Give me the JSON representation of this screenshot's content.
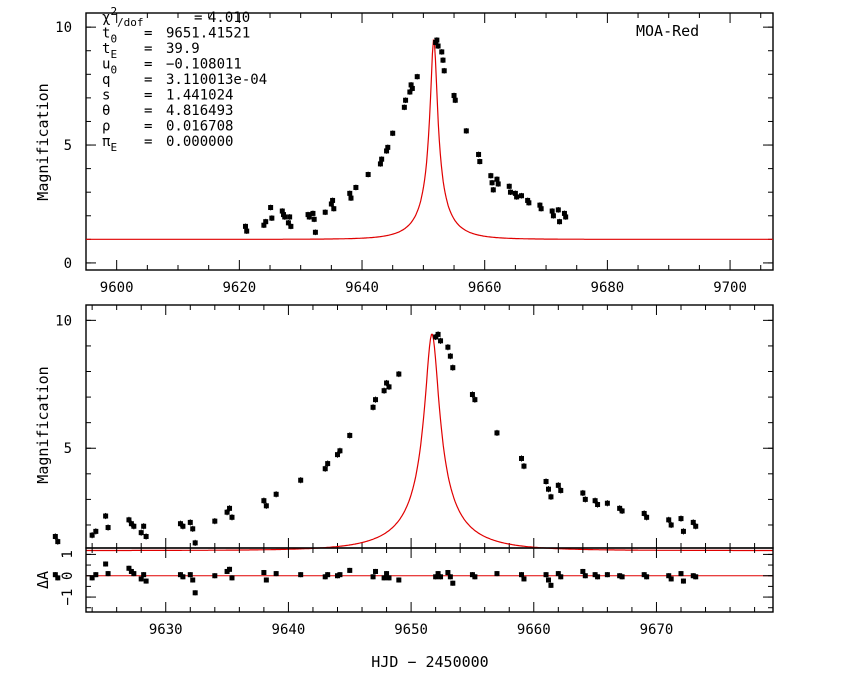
{
  "figure": {
    "instrument_label": "MOA-Red",
    "xlabel": "HJD − 2450000",
    "ylabel_mag": "Magnification",
    "ylabel_resid": "ΔA"
  },
  "params": [
    {
      "sym": "χ",
      "sup": "2",
      "sub": "/dof",
      "sep": "=",
      "val": "4.010"
    },
    {
      "sym": "t",
      "sub": "0",
      "sep": "=",
      "val": "9651.41521"
    },
    {
      "sym": "t",
      "sub": "E",
      "sep": "=",
      "val": "39.9"
    },
    {
      "sym": "u",
      "sub": "0",
      "sep": "=",
      "val": "−0.108011"
    },
    {
      "sym": "q",
      "sep": "=",
      "val": "3.110013e-04"
    },
    {
      "sym": "s",
      "sep": "=",
      "val": "1.441024"
    },
    {
      "sym": "θ",
      "sep": "=",
      "val": "4.816493"
    },
    {
      "sym": "ρ",
      "sep": "=",
      "val": "0.016708"
    },
    {
      "sym": "π",
      "sub": "E",
      "sep": "=",
      "val": "0.000000"
    }
  ],
  "chart_data": [
    {
      "type": "scatter",
      "panel": "top",
      "xlim": [
        9595,
        9707
      ],
      "ylim": [
        -0.3,
        10.6
      ],
      "xticks": [
        9600,
        9620,
        9640,
        9660,
        9680,
        9700
      ],
      "xtick_labels": [
        "9600",
        "9620",
        "9640",
        "9660",
        "9680",
        "9700"
      ],
      "yticks": [
        0,
        5,
        10
      ],
      "ytick_labels": [
        "0",
        "5",
        "10"
      ],
      "model": {
        "t0": 9651.7,
        "tE": 5.5,
        "baseline": 1.0,
        "peak": 9.45
      }
    },
    {
      "type": "scatter",
      "panel": "middle",
      "xlim": [
        9623.5,
        9679.5
      ],
      "ylim": [
        1.1,
        10.6
      ],
      "yticks": [
        5,
        10
      ],
      "ytick_labels": [
        "5",
        "10"
      ],
      "model": {
        "t0": 9651.7,
        "tE": 5.5,
        "baseline": 1.0,
        "peak": 9.45
      }
    },
    {
      "type": "scatter",
      "panel": "residual",
      "xlim": [
        9623.5,
        9679.5
      ],
      "ylim": [
        -1.7,
        1.3
      ],
      "xticks": [
        9630,
        9640,
        9650,
        9660,
        9670
      ],
      "xtick_labels": [
        "9630",
        "9640",
        "9650",
        "9660",
        "9670"
      ],
      "yticks": [
        -1,
        0,
        1
      ],
      "ytick_labels": [
        "−1",
        "0",
        "1"
      ]
    }
  ],
  "observations": [
    {
      "x": 9621.0,
      "y": 1.55,
      "r": 0.05
    },
    {
      "x": 9621.2,
      "y": 1.35,
      "r": -0.1
    },
    {
      "x": 9624.0,
      "y": 1.6,
      "r": -0.1
    },
    {
      "x": 9624.3,
      "y": 1.75,
      "r": 0.05
    },
    {
      "x": 9625.1,
      "y": 2.35,
      "r": 0.55
    },
    {
      "x": 9625.3,
      "y": 1.9,
      "r": 0.1
    },
    {
      "x": 9627.0,
      "y": 2.2,
      "r": 0.35
    },
    {
      "x": 9627.2,
      "y": 2.05,
      "r": 0.2
    },
    {
      "x": 9627.4,
      "y": 1.95,
      "r": 0.1
    },
    {
      "x": 9628.0,
      "y": 1.7,
      "r": -0.15
    },
    {
      "x": 9628.2,
      "y": 1.95,
      "r": 0.05
    },
    {
      "x": 9628.4,
      "y": 1.55,
      "r": -0.25
    },
    {
      "x": 9631.2,
      "y": 2.05,
      "r": 0.05
    },
    {
      "x": 9631.4,
      "y": 1.95,
      "r": -0.05
    },
    {
      "x": 9632.0,
      "y": 2.1,
      "r": 0.05
    },
    {
      "x": 9632.2,
      "y": 1.85,
      "r": -0.2
    },
    {
      "x": 9632.4,
      "y": 1.3,
      "r": -0.8
    },
    {
      "x": 9634.0,
      "y": 2.15,
      "r": 0.0
    },
    {
      "x": 9635.0,
      "y": 2.5,
      "r": 0.2
    },
    {
      "x": 9635.2,
      "y": 2.65,
      "r": 0.3
    },
    {
      "x": 9635.4,
      "y": 2.3,
      "r": -0.1
    },
    {
      "x": 9638.0,
      "y": 2.95,
      "r": 0.15
    },
    {
      "x": 9638.2,
      "y": 2.75,
      "r": -0.2
    },
    {
      "x": 9639.0,
      "y": 3.2,
      "r": 0.1
    },
    {
      "x": 9641.0,
      "y": 3.75,
      "r": 0.05
    },
    {
      "x": 9643.0,
      "y": 4.2,
      "r": -0.05
    },
    {
      "x": 9643.2,
      "y": 4.4,
      "r": 0.05
    },
    {
      "x": 9644.0,
      "y": 4.75,
      "r": 0.0
    },
    {
      "x": 9644.2,
      "y": 4.9,
      "r": 0.05
    },
    {
      "x": 9645.0,
      "y": 5.5,
      "r": 0.25
    },
    {
      "x": 9646.9,
      "y": 6.6,
      "r": -0.05
    },
    {
      "x": 9647.1,
      "y": 6.9,
      "r": 0.2
    },
    {
      "x": 9647.8,
      "y": 7.25,
      "r": -0.1
    },
    {
      "x": 9648.0,
      "y": 7.55,
      "r": 0.1
    },
    {
      "x": 9648.2,
      "y": 7.4,
      "r": -0.1
    },
    {
      "x": 9649.0,
      "y": 7.9,
      "r": -0.2
    },
    {
      "x": 9652.0,
      "y": 9.35,
      "r": -0.05
    },
    {
      "x": 9652.2,
      "y": 9.45,
      "r": 0.1
    },
    {
      "x": 9652.4,
      "y": 9.2,
      "r": -0.05
    },
    {
      "x": 9653.0,
      "y": 8.95,
      "r": 0.15
    },
    {
      "x": 9653.2,
      "y": 8.6,
      "r": -0.05
    },
    {
      "x": 9653.4,
      "y": 8.15,
      "r": -0.35
    },
    {
      "x": 9655.0,
      "y": 7.1,
      "r": 0.05
    },
    {
      "x": 9655.2,
      "y": 6.9,
      "r": -0.05
    },
    {
      "x": 9657.0,
      "y": 5.6,
      "r": 0.1
    },
    {
      "x": 9659.0,
      "y": 4.6,
      "r": 0.05
    },
    {
      "x": 9659.2,
      "y": 4.3,
      "r": -0.15
    },
    {
      "x": 9661.0,
      "y": 3.7,
      "r": 0.05
    },
    {
      "x": 9661.2,
      "y": 3.4,
      "r": -0.2
    },
    {
      "x": 9661.4,
      "y": 3.1,
      "r": -0.45
    },
    {
      "x": 9662.0,
      "y": 3.55,
      "r": 0.1
    },
    {
      "x": 9662.2,
      "y": 3.35,
      "r": -0.05
    },
    {
      "x": 9664.0,
      "y": 3.25,
      "r": 0.2
    },
    {
      "x": 9664.2,
      "y": 3.0,
      "r": 0.0
    },
    {
      "x": 9665.0,
      "y": 2.95,
      "r": 0.05
    },
    {
      "x": 9665.2,
      "y": 2.8,
      "r": -0.05
    },
    {
      "x": 9666.0,
      "y": 2.85,
      "r": 0.05
    },
    {
      "x": 9667.0,
      "y": 2.65,
      "r": 0.0
    },
    {
      "x": 9667.2,
      "y": 2.55,
      "r": -0.05
    },
    {
      "x": 9669.0,
      "y": 2.45,
      "r": 0.05
    },
    {
      "x": 9669.2,
      "y": 2.3,
      "r": -0.05
    },
    {
      "x": 9671.0,
      "y": 2.2,
      "r": 0.0
    },
    {
      "x": 9671.2,
      "y": 2.0,
      "r": -0.15
    },
    {
      "x": 9672.0,
      "y": 2.25,
      "r": 0.1
    },
    {
      "x": 9672.2,
      "y": 1.75,
      "r": -0.25
    },
    {
      "x": 9673.0,
      "y": 2.1,
      "r": 0.0
    },
    {
      "x": 9673.2,
      "y": 1.95,
      "r": -0.05
    }
  ]
}
